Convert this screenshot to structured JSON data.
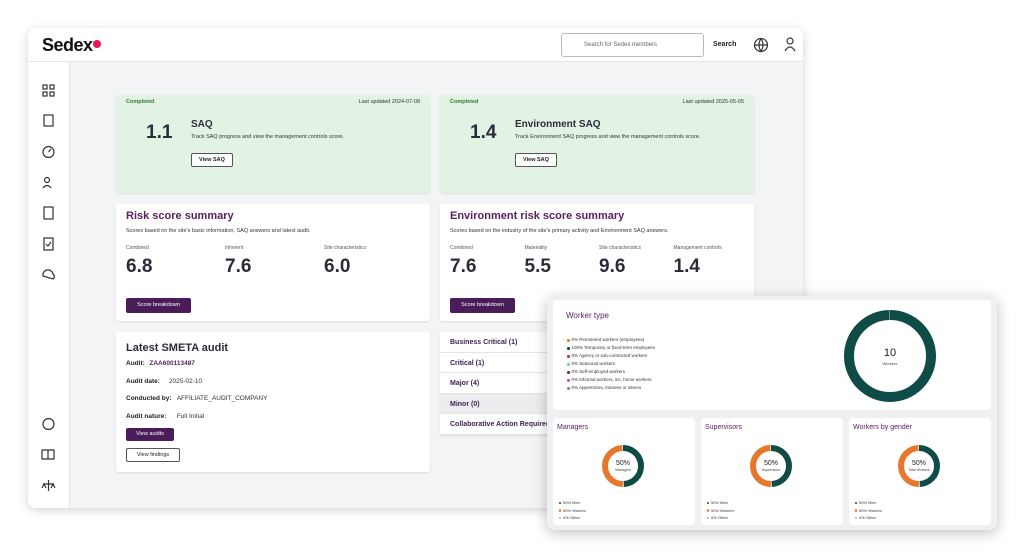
{
  "header": {
    "logo": "Sedex",
    "search_placeholder": "Search for Sedex members",
    "search_button": "Search"
  },
  "saq_cards": [
    {
      "status": "Completed",
      "updated": "Last updated 2024-07-08",
      "score": "1.1",
      "title": "SAQ",
      "description": "Track SAQ progress and view the management controls score.",
      "button": "View SAQ"
    },
    {
      "status": "Completed",
      "updated": "Last updated 2025-05-05",
      "score": "1.4",
      "title": "Environment SAQ",
      "description": "Track Environment SAQ progress and view the management controls score.",
      "button": "View SAQ"
    }
  ],
  "risk_cards": [
    {
      "title": "Risk score summary",
      "description": "Scores based on the site's basic information, SAQ answers and latest audit.",
      "metrics": [
        {
          "label": "Combined",
          "value": "6.8"
        },
        {
          "label": "Inherent",
          "value": "7.6"
        },
        {
          "label": "Site characteristics",
          "value": "6.0"
        }
      ],
      "button": "Score breakdown"
    },
    {
      "title": "Environment risk score summary",
      "description": "Scores based on the industry of the site's primary activity and Environment SAQ answers.",
      "metrics": [
        {
          "label": "Combined",
          "value": "7.6"
        },
        {
          "label": "Materiality",
          "value": "5.5"
        },
        {
          "label": "Site characteristics",
          "value": "9.6"
        },
        {
          "label": "Management controls",
          "value": "1.4"
        }
      ],
      "button": "Score breakdown"
    }
  ],
  "audit": {
    "title": "Latest SMETA audit",
    "fields": [
      {
        "label": "Audit:",
        "value": "ZAA600113487"
      },
      {
        "label": "Audit date:",
        "value": "2025-02-10"
      },
      {
        "label": "Conducted by:",
        "value": "AFFILIATE_AUDIT_COMPANY"
      },
      {
        "label": "Audit nature:",
        "value": "Full Initial"
      }
    ],
    "buttons": [
      "View audits",
      "View findings"
    ]
  },
  "findings": [
    "Business Critical (1)",
    "Critical (1)",
    "Major (4)",
    "Minor (0)",
    "Collaborative Action Required"
  ],
  "worker_type": {
    "title": "Worker type",
    "center_value": "10",
    "center_label": "Workers",
    "items": [
      {
        "label": "0% Permanent workers (employees)",
        "value": 0,
        "color": "#e8772e"
      },
      {
        "label": "100% Temporary or fixed-term employees",
        "value": 100,
        "color": "#0f4c47"
      },
      {
        "label": "0% Agency or sub-contracted workers",
        "value": 0,
        "color": "#c0392b"
      },
      {
        "label": "0% Seasonal workers",
        "value": 0,
        "color": "#7cc4a4"
      },
      {
        "label": "0% Self-employed workers",
        "value": 0,
        "color": "#5b2a6e"
      },
      {
        "label": "0% Informal workers, inc. home workers",
        "value": 0,
        "color": "#d64c8a"
      },
      {
        "label": "0% Apprentices, trainees or interns",
        "value": 0,
        "color": "#8e7cc3"
      }
    ]
  },
  "donut_cards": [
    {
      "title": "Managers",
      "center_value": "50%",
      "center_label": "Managers",
      "items": [
        {
          "label": "50% Men",
          "value": 50,
          "color": "#0f4c47"
        },
        {
          "label": "50% Women",
          "value": 50,
          "color": "#e8772e"
        },
        {
          "label": "0% Other",
          "value": 0,
          "color": "#7cc4a4"
        }
      ]
    },
    {
      "title": "Supervisors",
      "center_value": "50%",
      "center_label": "Supervisors",
      "items": [
        {
          "label": "50% Men",
          "value": 50,
          "color": "#0f4c47"
        },
        {
          "label": "50% Women",
          "value": 50,
          "color": "#e8772e"
        },
        {
          "label": "0% Other",
          "value": 0,
          "color": "#7cc4a4"
        }
      ]
    },
    {
      "title": "Workers by gender",
      "center_value": "50%",
      "center_label": "Total Workers",
      "items": [
        {
          "label": "50% Men",
          "value": 50,
          "color": "#0f4c47"
        },
        {
          "label": "50% Women",
          "value": 50,
          "color": "#e8772e"
        },
        {
          "label": "0% Other",
          "value": 0,
          "color": "#7cc4a4"
        }
      ]
    }
  ]
}
